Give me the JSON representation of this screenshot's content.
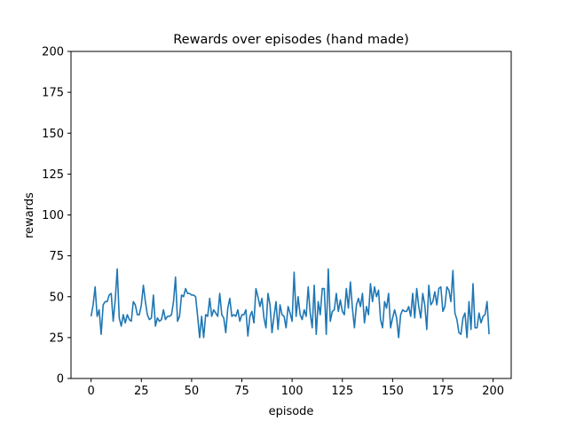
{
  "chart_data": {
    "type": "line",
    "title": "Rewards over episodes (hand made)",
    "xlabel": "episode",
    "ylabel": "rewards",
    "xlim": [
      -10,
      209
    ],
    "ylim": [
      0,
      200
    ],
    "xticks": [
      0,
      25,
      50,
      75,
      100,
      125,
      150,
      175,
      200
    ],
    "yticks": [
      0,
      25,
      50,
      75,
      100,
      125,
      150,
      175,
      200
    ],
    "grid": false,
    "line_color": "#1f77b4",
    "series": [
      {
        "values": [
          38,
          45,
          56,
          38,
          42,
          27,
          45,
          47,
          47,
          51,
          52,
          35,
          48,
          67,
          37,
          32,
          39,
          34,
          39,
          36,
          35,
          47,
          45,
          39,
          39,
          45,
          57,
          47,
          39,
          36,
          37,
          51,
          32,
          37,
          35,
          36,
          42,
          36,
          38,
          38,
          39,
          47,
          62,
          35,
          38,
          51,
          50,
          55,
          52,
          52,
          51,
          51,
          50,
          38,
          25,
          38,
          25,
          39,
          38,
          49,
          38,
          42,
          40,
          38,
          52,
          39,
          37,
          28,
          43,
          49,
          38,
          39,
          38,
          42,
          35,
          39,
          39,
          42,
          26,
          38,
          41,
          34,
          55,
          50,
          44,
          49,
          37,
          31,
          52,
          45,
          28,
          38,
          47,
          30,
          45,
          39,
          38,
          31,
          44,
          40,
          35,
          65,
          38,
          50,
          39,
          36,
          42,
          38,
          56,
          40,
          31,
          57,
          27,
          47,
          39,
          55,
          55,
          27,
          67,
          35,
          41,
          42,
          52,
          41,
          48,
          41,
          39,
          55,
          43,
          59,
          43,
          31,
          45,
          49,
          44,
          52,
          34,
          44,
          39,
          58,
          47,
          56,
          50,
          54,
          36,
          31,
          47,
          43,
          52,
          31,
          37,
          42,
          37,
          25,
          39,
          42,
          41,
          41,
          44,
          38,
          52,
          37,
          55,
          44,
          37,
          52,
          45,
          30,
          57,
          45,
          47,
          53,
          45,
          55,
          56,
          41,
          44,
          56,
          54,
          47,
          66,
          40,
          36,
          28,
          27,
          37,
          40,
          25,
          47,
          30,
          58,
          31,
          31,
          40,
          34,
          38,
          39,
          47,
          27
        ]
      }
    ]
  }
}
